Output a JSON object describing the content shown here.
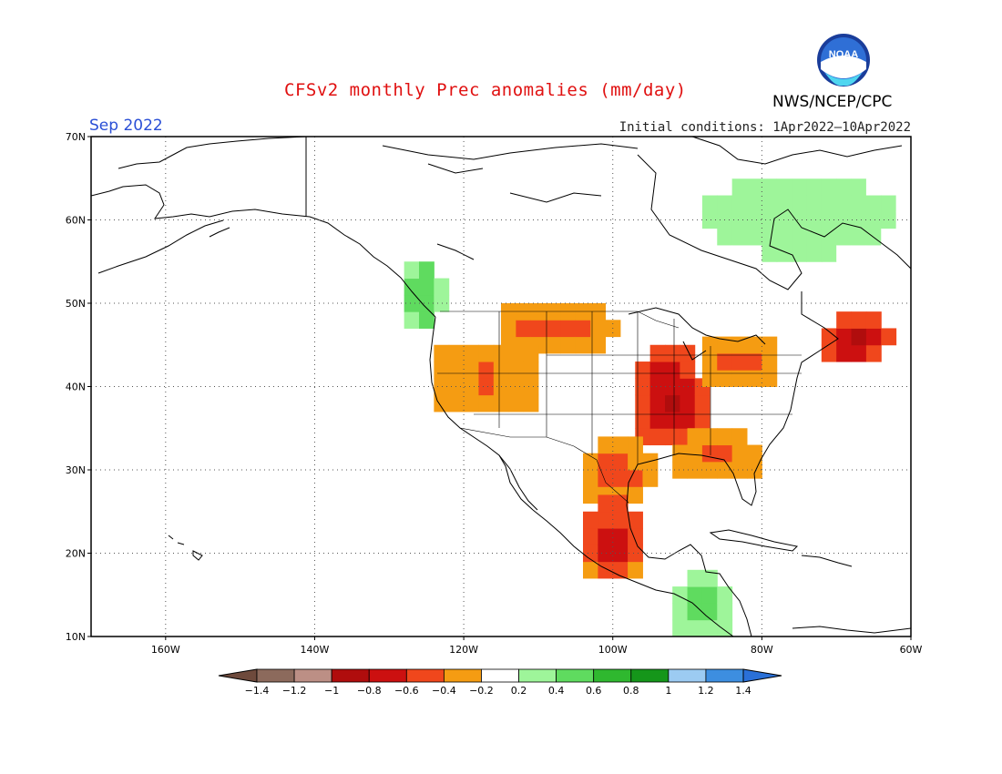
{
  "header": {
    "title": "CFSv2 monthly Prec anomalies (mm/day)",
    "month": "Sep 2022",
    "initial_conditions": "Initial conditions: 1Apr2022–10Apr2022",
    "agency": "NWS/NCEP/CPC",
    "logo_text": "NOAA"
  },
  "map": {
    "lat_labels": [
      "70N",
      "60N",
      "50N",
      "40N",
      "30N",
      "20N",
      "10N"
    ],
    "lon_labels": [
      "160W",
      "140W",
      "120W",
      "100W",
      "80W",
      "60W"
    ],
    "lat_range": [
      10,
      70
    ],
    "lon_range": [
      -170,
      -60
    ]
  },
  "colorbar": {
    "labels": [
      "−1.4",
      "−1.2",
      "−1",
      "−0.8",
      "−0.6",
      "−0.4",
      "−0.2",
      "0.2",
      "0.4",
      "0.6",
      "0.8",
      "1",
      "1.2",
      "1.4"
    ],
    "colors": [
      "#6e4a3c",
      "#8c6a5c",
      "#bc8f85",
      "#b00d0d",
      "#cc1010",
      "#f0471c",
      "#f59c12",
      "#ffffff",
      "#9ef59a",
      "#5fdb5f",
      "#2fb82f",
      "#15961a",
      "#9ccbf2",
      "#3d8ee0",
      "#2a70d8"
    ]
  },
  "anomaly_regions": [
    {
      "name": "central-us-dry",
      "lon": [
        -97,
        -88
      ],
      "lat": [
        33,
        44
      ],
      "level": -0.8
    },
    {
      "name": "northern-plains-dry",
      "lon": [
        -115,
        -100
      ],
      "lat": [
        44,
        50
      ],
      "level": -0.5
    },
    {
      "name": "west-dry",
      "lon": [
        -124,
        -110
      ],
      "lat": [
        37,
        45
      ],
      "level": -0.4
    },
    {
      "name": "southeast-dry",
      "lon": [
        -92,
        -80
      ],
      "lat": [
        29,
        34
      ],
      "level": -0.4
    },
    {
      "name": "great-lakes-dry",
      "lon": [
        -88,
        -78
      ],
      "lat": [
        40,
        46
      ],
      "level": -0.5
    },
    {
      "name": "new-england-dry",
      "lon": [
        -72,
        -63
      ],
      "lat": [
        43,
        48
      ],
      "level": -0.8
    },
    {
      "name": "texas-dry",
      "lon": [
        -104,
        -95
      ],
      "lat": [
        26,
        33
      ],
      "level": -0.5
    },
    {
      "name": "eastern-mexico-dry",
      "lon": [
        -104,
        -96
      ],
      "lat": [
        17,
        26
      ],
      "level": -0.7
    },
    {
      "name": "pacific-nw-wet",
      "lon": [
        -128,
        -123
      ],
      "lat": [
        47,
        55
      ],
      "level": 0.6
    },
    {
      "name": "central-america-wet",
      "lon": [
        -92,
        -84
      ],
      "lat": [
        10,
        17
      ],
      "level": 0.5
    },
    {
      "name": "canada-north-wet",
      "lon": [
        -90,
        -60
      ],
      "lat": [
        55,
        66
      ],
      "level": 0.3
    }
  ]
}
